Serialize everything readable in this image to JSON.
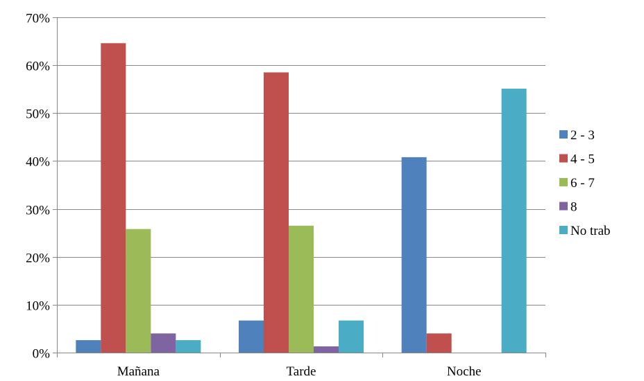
{
  "chart_data": {
    "type": "bar",
    "title": "",
    "xlabel": "",
    "ylabel": "",
    "categories": [
      "Mañana",
      "Tarde",
      "Noche"
    ],
    "ylim": [
      0,
      70
    ],
    "yticks": [
      0,
      10,
      20,
      30,
      40,
      50,
      60,
      70
    ],
    "ytick_labels": [
      "0%",
      "10%",
      "20%",
      "30%",
      "40%",
      "50%",
      "60%",
      "70%"
    ],
    "grid": "horizontal",
    "legend_position": "right",
    "series": [
      {
        "name": "2 - 3",
        "color": "#4F81BD",
        "values": [
          2.6,
          6.7,
          40.8
        ]
      },
      {
        "name": "4 - 5",
        "color": "#C0504D",
        "values": [
          64.6,
          58.5,
          4.0
        ]
      },
      {
        "name": "6 - 7",
        "color": "#9BBB59",
        "values": [
          25.8,
          26.5,
          0
        ]
      },
      {
        "name": "8",
        "color": "#8064A2",
        "values": [
          4.0,
          1.3,
          0
        ]
      },
      {
        "name": "No trab",
        "color": "#4BACC6",
        "values": [
          2.6,
          6.7,
          55.1
        ]
      }
    ]
  }
}
